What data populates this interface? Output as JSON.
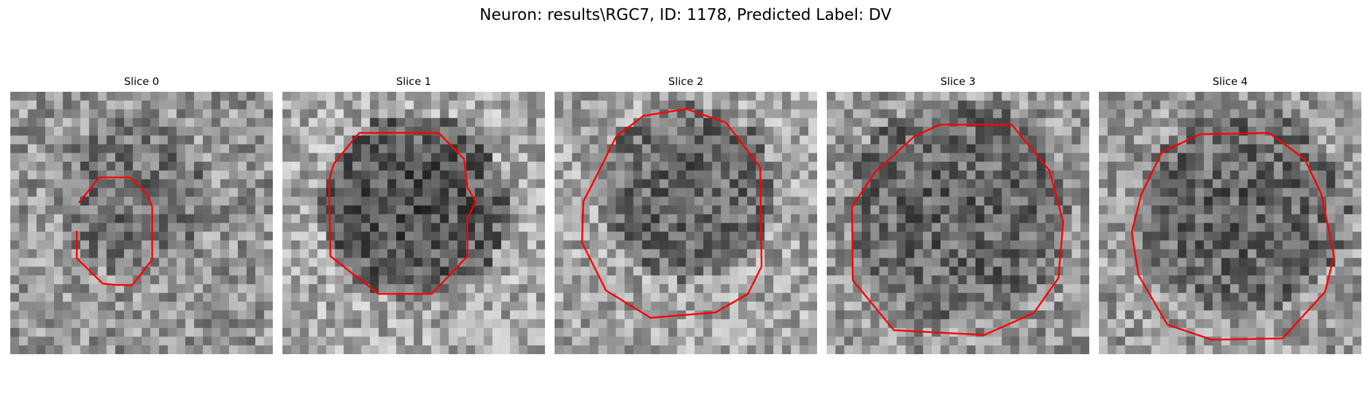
{
  "figure": {
    "title": "Neuron: results\\RGC7, ID: 1178, Predicted Label: DV"
  },
  "panels": [
    {
      "title": "Slice 0",
      "seed": 11,
      "base": 150,
      "dark_center": [
        0.48,
        0.4
      ],
      "dark_radius": 0.3,
      "dark_strength": 40
    },
    {
      "title": "Slice 1",
      "seed": 23,
      "base": 170,
      "dark_center": [
        0.5,
        0.44
      ],
      "dark_radius": 0.36,
      "dark_strength": 95
    },
    {
      "title": "Slice 2",
      "seed": 37,
      "base": 165,
      "dark_center": [
        0.5,
        0.38
      ],
      "dark_radius": 0.34,
      "dark_strength": 70
    },
    {
      "title": "Slice 3",
      "seed": 41,
      "base": 150,
      "dark_center": [
        0.5,
        0.45
      ],
      "dark_radius": 0.42,
      "dark_strength": 55
    },
    {
      "title": "Slice 4",
      "seed": 53,
      "base": 155,
      "dark_center": [
        0.55,
        0.45
      ],
      "dark_radius": 0.4,
      "dark_strength": 60
    }
  ],
  "contour_color": "#ff0000",
  "colormap": "gray"
}
